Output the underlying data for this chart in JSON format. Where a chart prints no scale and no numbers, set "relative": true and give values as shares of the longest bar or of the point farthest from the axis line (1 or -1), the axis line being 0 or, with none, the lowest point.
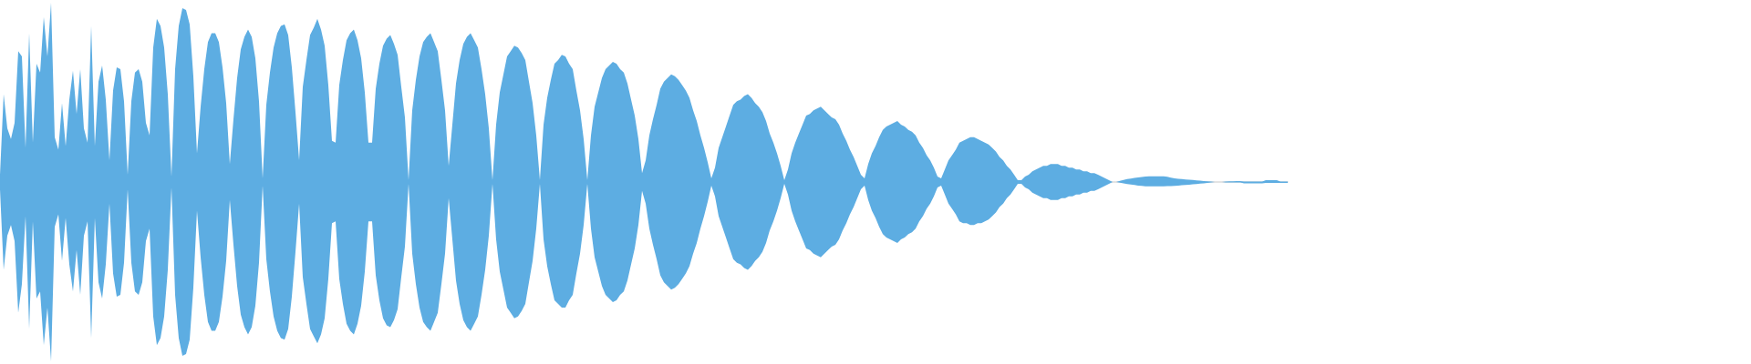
{
  "chart_data": {
    "type": "area",
    "relative": true,
    "categories": [
      null,
      null,
      null,
      null,
      null,
      null,
      null,
      null,
      null,
      null,
      null,
      null,
      null,
      null,
      null,
      null,
      null,
      null,
      null,
      null,
      null,
      null,
      null,
      null,
      null,
      null,
      null,
      null,
      null,
      null,
      null,
      null,
      null,
      null,
      null,
      null,
      null,
      null,
      null,
      null,
      null,
      null,
      null,
      null,
      null,
      null,
      null,
      null,
      null,
      null,
      null,
      null,
      null,
      null,
      null,
      null,
      null,
      null,
      null,
      null,
      null,
      null,
      null,
      null,
      null,
      null,
      null,
      null,
      null,
      null,
      null,
      null,
      null,
      null,
      null,
      null,
      null,
      null,
      null,
      null,
      null,
      null,
      null,
      null,
      null,
      null,
      null,
      null,
      null,
      null,
      null,
      null,
      null,
      null,
      null,
      null,
      null,
      null,
      null,
      null,
      null,
      null,
      null,
      null,
      null,
      null,
      null,
      null,
      null,
      null,
      null,
      null,
      null,
      null,
      null,
      null,
      null,
      null,
      null,
      null,
      null,
      null,
      null,
      null,
      null,
      null,
      null,
      null,
      null,
      null,
      null,
      null,
      null,
      null,
      null,
      null,
      null,
      null,
      null,
      null,
      null,
      null,
      null,
      null,
      null,
      null,
      null,
      null,
      null,
      null,
      null,
      null,
      null,
      null,
      null,
      null,
      null,
      null,
      null,
      null,
      null,
      null,
      null,
      null,
      null,
      null,
      null,
      null,
      null,
      null,
      null,
      null,
      null,
      null,
      null,
      null,
      null,
      null,
      null,
      null,
      null,
      null,
      null,
      null,
      null,
      null,
      null,
      null,
      null,
      null,
      null,
      null,
      null,
      null,
      null,
      null,
      null,
      null,
      null,
      null,
      null,
      null,
      null,
      null,
      null,
      null,
      null,
      null,
      null,
      null,
      null,
      null,
      null,
      null,
      null,
      null,
      null,
      null,
      null,
      null,
      null,
      null,
      null,
      null,
      null,
      null,
      null,
      null,
      null,
      null,
      null,
      null,
      null,
      null,
      null,
      null,
      null,
      null,
      null,
      null,
      null,
      null,
      null,
      null,
      null,
      null,
      null,
      null,
      null,
      null,
      null,
      null,
      null,
      null,
      null,
      null,
      null,
      null,
      null,
      null,
      null,
      null,
      null,
      null,
      null,
      null,
      null,
      null,
      null,
      null,
      null,
      null,
      null,
      null,
      null,
      null,
      null,
      null,
      null,
      null,
      null,
      null,
      null,
      null,
      null,
      null,
      null,
      null,
      null,
      null,
      null,
      null,
      null,
      null,
      null,
      null,
      null,
      null,
      null,
      null,
      null,
      null,
      null,
      null,
      null,
      null,
      null,
      null,
      null,
      null,
      null,
      null,
      null,
      null,
      null,
      null,
      null,
      null,
      null,
      null,
      null,
      null,
      null,
      null,
      null,
      null,
      null,
      null,
      null,
      null,
      null,
      null,
      null,
      null,
      null,
      null,
      null,
      null,
      null,
      null,
      null,
      null,
      null,
      null,
      null,
      null,
      null,
      null,
      null,
      null,
      null,
      null,
      null,
      null
    ],
    "series": [
      {
        "color": "#5dade2",
        "values": [
          0.04,
          0.49,
          0.3,
          0.24,
          0.33,
          0.73,
          0.7,
          0.19,
          0.83,
          0.22,
          0.66,
          0.61,
          0.92,
          0.7,
          1.0,
          0.25,
          0.18,
          0.44,
          0.2,
          0.46,
          0.62,
          0.38,
          0.63,
          0.3,
          0.22,
          0.87,
          0.2,
          0.56,
          0.65,
          0.46,
          0.12,
          0.51,
          0.64,
          0.63,
          0.45,
          0.04,
          0.45,
          0.61,
          0.63,
          0.56,
          0.33,
          0.26,
          0.75,
          0.91,
          0.87,
          0.75,
          0.49,
          0.03,
          0.63,
          0.87,
          0.97,
          0.96,
          0.88,
          0.59,
          0.16,
          0.42,
          0.63,
          0.78,
          0.83,
          0.83,
          0.78,
          0.64,
          0.44,
          0.1,
          0.35,
          0.58,
          0.74,
          0.81,
          0.85,
          0.81,
          0.69,
          0.45,
          0.02,
          0.43,
          0.61,
          0.75,
          0.83,
          0.87,
          0.88,
          0.82,
          0.64,
          0.39,
          0.12,
          0.53,
          0.68,
          0.82,
          0.86,
          0.91,
          0.85,
          0.76,
          0.54,
          0.23,
          0.22,
          0.54,
          0.68,
          0.79,
          0.83,
          0.85,
          0.79,
          0.69,
          0.5,
          0.22,
          0.22,
          0.52,
          0.66,
          0.76,
          0.8,
          0.82,
          0.77,
          0.71,
          0.53,
          0.36,
          0.01,
          0.4,
          0.57,
          0.7,
          0.78,
          0.81,
          0.83,
          0.78,
          0.73,
          0.57,
          0.4,
          0.09,
          0.32,
          0.55,
          0.68,
          0.77,
          0.81,
          0.83,
          0.79,
          0.75,
          0.63,
          0.49,
          0.3,
          0.01,
          0.32,
          0.5,
          0.6,
          0.7,
          0.73,
          0.76,
          0.75,
          0.72,
          0.68,
          0.56,
          0.44,
          0.26,
          0.01,
          0.32,
          0.47,
          0.57,
          0.66,
          0.68,
          0.71,
          0.7,
          0.66,
          0.63,
          0.51,
          0.4,
          0.24,
          0.01,
          0.26,
          0.42,
          0.5,
          0.58,
          0.63,
          0.65,
          0.67,
          0.66,
          0.63,
          0.61,
          0.55,
          0.46,
          0.37,
          0.24,
          0.05,
          0.12,
          0.26,
          0.35,
          0.43,
          0.52,
          0.56,
          0.58,
          0.6,
          0.59,
          0.57,
          0.54,
          0.51,
          0.47,
          0.4,
          0.34,
          0.26,
          0.19,
          0.11,
          0.02,
          0.08,
          0.19,
          0.25,
          0.31,
          0.37,
          0.43,
          0.45,
          0.46,
          0.48,
          0.49,
          0.47,
          0.44,
          0.42,
          0.39,
          0.34,
          0.27,
          0.22,
          0.16,
          0.09,
          0.01,
          0.07,
          0.16,
          0.22,
          0.27,
          0.32,
          0.37,
          0.38,
          0.4,
          0.41,
          0.42,
          0.4,
          0.38,
          0.36,
          0.35,
          0.32,
          0.27,
          0.23,
          0.18,
          0.14,
          0.09,
          0.04,
          0.02,
          0.1,
          0.16,
          0.2,
          0.25,
          0.29,
          0.31,
          0.32,
          0.33,
          0.34,
          0.32,
          0.31,
          0.29,
          0.28,
          0.26,
          0.22,
          0.19,
          0.15,
          0.12,
          0.08,
          0.03,
          0.02,
          0.07,
          0.12,
          0.15,
          0.18,
          0.22,
          0.23,
          0.24,
          0.25,
          0.25,
          0.24,
          0.23,
          0.22,
          0.21,
          0.19,
          0.17,
          0.14,
          0.12,
          0.09,
          0.07,
          0.04,
          0.01,
          0.01,
          0.03,
          0.04,
          0.06,
          0.07,
          0.08,
          0.09,
          0.09,
          0.1,
          0.1,
          0.1,
          0.09,
          0.09,
          0.08,
          0.08,
          0.07,
          0.07,
          0.06,
          0.06,
          0.05,
          0.05,
          0.04,
          0.03,
          0.02,
          0.01,
          0,
          0,
          0.006,
          0.012,
          0.016,
          0.019,
          0.023,
          0.026,
          0.028,
          0.031,
          0.032,
          0.032,
          0.032,
          0.032,
          0.032,
          0.029,
          0.024,
          0.02,
          0.018,
          0.016,
          0.014,
          0.013,
          0.011,
          0.009,
          0.007,
          0.005,
          0.004,
          0.002,
          0,
          0,
          0,
          0.003,
          0.004,
          0.004,
          0.005,
          0.005,
          0.002,
          0.002,
          0.002,
          0.002,
          0.002,
          0.002,
          0.01,
          0.01,
          0.01,
          0.01,
          0.003,
          0.003,
          0.003
        ]
      },
      {
        "color": "#5dade2",
        "values": [
          -0.04,
          -0.49,
          -0.3,
          -0.24,
          -0.33,
          -0.73,
          -0.57,
          -0.19,
          -0.82,
          -0.22,
          -0.65,
          -0.61,
          -0.91,
          -0.7,
          -1.0,
          -0.25,
          -0.18,
          -0.44,
          -0.2,
          -0.46,
          -0.61,
          -0.38,
          -0.63,
          -0.3,
          -0.22,
          -0.87,
          -0.2,
          -0.56,
          -0.65,
          -0.46,
          -0.12,
          -0.51,
          -0.64,
          -0.63,
          -0.45,
          -0.04,
          -0.45,
          -0.61,
          -0.63,
          -0.56,
          -0.33,
          -0.26,
          -0.75,
          -0.91,
          -0.87,
          -0.75,
          -0.49,
          -0.03,
          -0.63,
          -0.87,
          -0.97,
          -0.96,
          -0.88,
          -0.59,
          -0.16,
          -0.42,
          -0.63,
          -0.78,
          -0.83,
          -0.83,
          -0.78,
          -0.64,
          -0.44,
          -0.1,
          -0.35,
          -0.58,
          -0.74,
          -0.81,
          -0.85,
          -0.81,
          -0.69,
          -0.45,
          -0.02,
          -0.43,
          -0.61,
          -0.75,
          -0.83,
          -0.87,
          -0.88,
          -0.82,
          -0.64,
          -0.39,
          -0.12,
          -0.53,
          -0.68,
          -0.82,
          -0.86,
          -0.9,
          -0.85,
          -0.76,
          -0.54,
          -0.23,
          -0.22,
          -0.54,
          -0.68,
          -0.79,
          -0.83,
          -0.85,
          -0.79,
          -0.69,
          -0.5,
          -0.22,
          -0.22,
          -0.52,
          -0.66,
          -0.76,
          -0.8,
          -0.81,
          -0.77,
          -0.71,
          -0.53,
          -0.36,
          -0.01,
          -0.4,
          -0.57,
          -0.7,
          -0.78,
          -0.81,
          -0.83,
          -0.78,
          -0.73,
          -0.57,
          -0.4,
          -0.09,
          -0.32,
          -0.55,
          -0.68,
          -0.77,
          -0.81,
          -0.83,
          -0.79,
          -0.75,
          -0.63,
          -0.49,
          -0.3,
          -0.01,
          -0.32,
          -0.5,
          -0.6,
          -0.7,
          -0.73,
          -0.76,
          -0.75,
          -0.72,
          -0.68,
          -0.56,
          -0.44,
          -0.26,
          -0.01,
          -0.32,
          -0.47,
          -0.57,
          -0.66,
          -0.68,
          -0.7,
          -0.7,
          -0.66,
          -0.63,
          -0.51,
          -0.4,
          -0.24,
          -0.01,
          -0.26,
          -0.42,
          -0.5,
          -0.58,
          -0.63,
          -0.65,
          -0.67,
          -0.66,
          -0.63,
          -0.61,
          -0.55,
          -0.46,
          -0.37,
          -0.24,
          -0.05,
          -0.12,
          -0.26,
          -0.35,
          -0.43,
          -0.52,
          -0.56,
          -0.58,
          -0.6,
          -0.59,
          -0.57,
          -0.54,
          -0.51,
          -0.47,
          -0.4,
          -0.34,
          -0.26,
          -0.19,
          -0.11,
          -0.02,
          -0.08,
          -0.19,
          -0.25,
          -0.31,
          -0.37,
          -0.43,
          -0.45,
          -0.46,
          -0.48,
          -0.49,
          -0.47,
          -0.44,
          -0.42,
          -0.39,
          -0.34,
          -0.27,
          -0.22,
          -0.16,
          -0.09,
          -0.01,
          -0.07,
          -0.16,
          -0.22,
          -0.27,
          -0.32,
          -0.37,
          -0.38,
          -0.4,
          -0.41,
          -0.42,
          -0.4,
          -0.38,
          -0.36,
          -0.35,
          -0.32,
          -0.27,
          -0.23,
          -0.18,
          -0.14,
          -0.09,
          -0.04,
          -0.02,
          -0.1,
          -0.16,
          -0.2,
          -0.25,
          -0.29,
          -0.31,
          -0.32,
          -0.33,
          -0.34,
          -0.32,
          -0.31,
          -0.29,
          -0.28,
          -0.26,
          -0.22,
          -0.19,
          -0.15,
          -0.12,
          -0.08,
          -0.03,
          -0.02,
          -0.07,
          -0.12,
          -0.15,
          -0.18,
          -0.22,
          -0.23,
          -0.23,
          -0.24,
          -0.24,
          -0.23,
          -0.23,
          -0.22,
          -0.21,
          -0.19,
          -0.17,
          -0.14,
          -0.12,
          -0.09,
          -0.07,
          -0.04,
          -0.01,
          -0.01,
          -0.03,
          -0.04,
          -0.06,
          -0.07,
          -0.08,
          -0.09,
          -0.09,
          -0.1,
          -0.1,
          -0.1,
          -0.09,
          -0.09,
          -0.08,
          -0.08,
          -0.07,
          -0.07,
          -0.06,
          -0.06,
          -0.05,
          -0.05,
          -0.04,
          -0.03,
          -0.02,
          -0.01,
          0,
          0,
          -0.004,
          -0.007,
          -0.011,
          -0.014,
          -0.017,
          -0.02,
          -0.022,
          -0.024,
          -0.024,
          -0.024,
          -0.024,
          -0.024,
          -0.024,
          -0.023,
          -0.023,
          -0.022,
          -0.02,
          -0.018,
          -0.016,
          -0.015,
          -0.013,
          -0.011,
          -0.009,
          -0.007,
          -0.005,
          -0.002,
          0,
          0,
          0,
          -0.002,
          -0.002,
          -0.002,
          -0.002,
          -0.002,
          -0.008,
          -0.008,
          -0.008,
          -0.008,
          -0.008,
          -0.008,
          -0.005,
          -0.005,
          -0.005,
          -0.005,
          -0.005,
          -0.005,
          -0.005
        ]
      }
    ]
  }
}
